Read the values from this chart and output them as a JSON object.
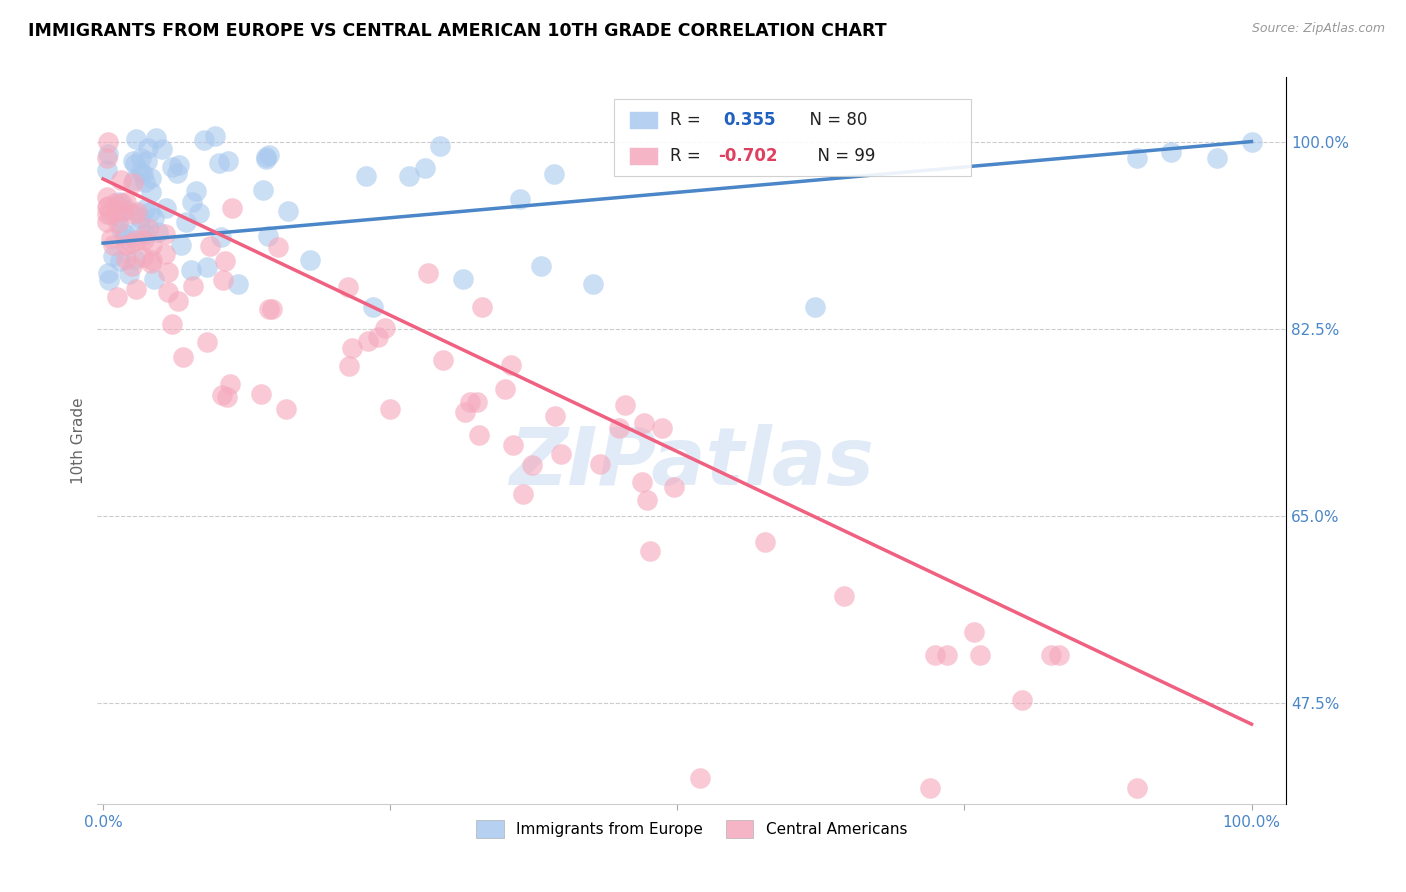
{
  "title": "IMMIGRANTS FROM EUROPE VS CENTRAL AMERICAN 10TH GRADE CORRELATION CHART",
  "source": "Source: ZipAtlas.com",
  "ylabel": "10th Grade",
  "blue_R": 0.355,
  "blue_N": 80,
  "pink_R": -0.702,
  "pink_N": 99,
  "blue_color": "#A8C8EE",
  "pink_color": "#F5A8BC",
  "blue_line_color": "#4A86C8",
  "pink_line_color": "#F06080",
  "watermark": "ZIPatlas",
  "legend_labels": [
    "Immigrants from Europe",
    "Central Americans"
  ],
  "blue_R_color": "#2060C0",
  "pink_R_color": "#E04060",
  "grid_color": "#CCCCCC",
  "ytick_color": "#4A86C8",
  "xtick_color": "#4A86C8",
  "ylim_low": 0.38,
  "ylim_high": 1.06,
  "xlim_low": -0.005,
  "xlim_high": 1.03,
  "blue_line_x0": 0.0,
  "blue_line_x1": 1.0,
  "blue_line_y0": 0.905,
  "blue_line_y1": 1.0,
  "pink_line_x0": 0.0,
  "pink_line_x1": 1.0,
  "pink_line_y0": 0.965,
  "pink_line_y1": 0.455,
  "yticks": [
    0.475,
    0.65,
    0.825,
    1.0
  ],
  "ytick_labels": [
    "47.5%",
    "65.0%",
    "82.5%",
    "100.0%"
  ]
}
